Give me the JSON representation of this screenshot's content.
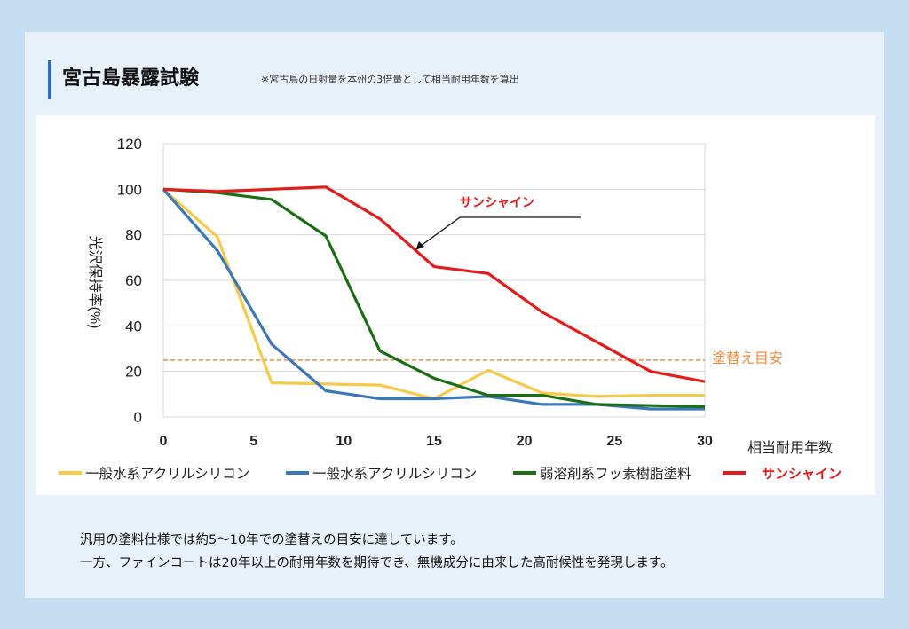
{
  "title": "宮古島暴露試験",
  "subtitle": "※宮古島の日射量を本州の3倍量として相当耐用年数を算出",
  "chart_data": {
    "type": "line",
    "xlabel": "相当耐用年数",
    "ylabel": "光沢保持率(%)",
    "xlim": [
      0,
      30
    ],
    "ylim": [
      0,
      120
    ],
    "x_ticks": [
      "0",
      "5",
      "10",
      "15",
      "20",
      "25",
      "30"
    ],
    "y_ticks": [
      "0",
      "20",
      "40",
      "60",
      "80",
      "100",
      "120"
    ],
    "grid": "horizontal",
    "legend_position": "bottom",
    "reference_line": {
      "label": "塗替え目安",
      "value": 25,
      "color": "#f08c3c"
    },
    "annotation": {
      "text": "サンシャイン",
      "color": "#e31b1b"
    },
    "series": [
      {
        "name": "一般水系アクリルシリコン",
        "color": "#f7c948",
        "x": [
          0,
          3,
          6,
          9,
          12,
          15,
          18,
          21,
          24,
          27,
          30
        ],
        "values": [
          100,
          79,
          15,
          14.5,
          14,
          8,
          20.5,
          10.5,
          9,
          9.5,
          9.5
        ]
      },
      {
        "name": "一般水系アクリルシリコン",
        "color": "#3b78b8",
        "x": [
          0,
          3,
          6,
          9,
          12,
          15,
          18,
          21,
          24,
          27,
          30
        ],
        "values": [
          100,
          73,
          32,
          11.5,
          8,
          8,
          9,
          5.5,
          5.5,
          3.5,
          3.5
        ]
      },
      {
        "name": "弱溶剤系フッ素樹脂塗料",
        "color": "#1b6e14",
        "x": [
          0,
          3,
          6,
          9,
          12,
          15,
          18,
          21,
          24,
          27,
          30
        ],
        "values": [
          100,
          98.5,
          95.5,
          79.5,
          29,
          17,
          9.5,
          9.5,
          5.5,
          5,
          4.5
        ]
      },
      {
        "name": "サンシャイン",
        "color": "#e31b1b",
        "x": [
          0,
          3,
          6,
          9,
          12,
          15,
          18,
          21,
          24,
          27,
          30
        ],
        "values": [
          100,
          99,
          100,
          101,
          87,
          66,
          63,
          46,
          33,
          20,
          15.5
        ]
      }
    ]
  },
  "footer": {
    "line1": "汎用の塗料仕様では約5～10年での塗替えの目安に達しています。",
    "line2": "一方、ファインコートは20年以上の耐用年数を期待でき、無機成分に由来した高耐候性を発現します。"
  }
}
